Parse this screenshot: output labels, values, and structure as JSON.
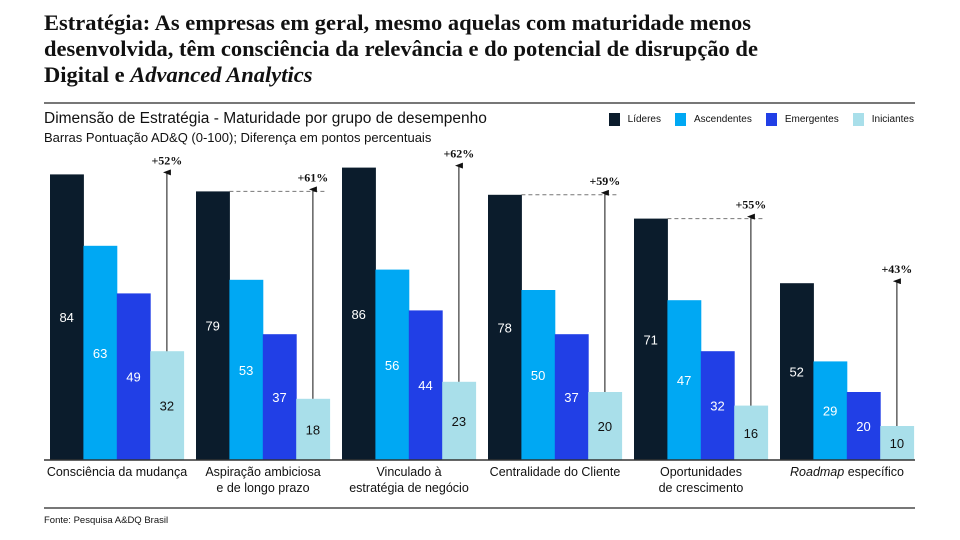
{
  "title": {
    "line1": "Estratégia: As empresas em geral, mesmo aquelas com maturidade menos",
    "line2": "desenvolvida, têm consciência da relevância e do potencial de disrupção de",
    "line3_plain": "Digital e ",
    "line3_italic": "Advanced Analytics"
  },
  "subtitle": "Dimensão de Estratégia - Maturidade por grupo de desempenho",
  "subtitle2": "Barras Pontuação AD&Q (0-100); Diferença em pontos percentuais",
  "source": "Fonte: Pesquisa A&DQ Brasil",
  "chart_data": {
    "type": "bar",
    "ylim": [
      0,
      100
    ],
    "grid": false,
    "legend_position": "top-right",
    "categories": [
      "Consciência da mudança",
      "Aspiração ambiciosa e de longo prazo",
      "Vinculado à estratégia de negócio",
      "Centralidade do Cliente",
      "Oportunidades de crescimento",
      "Roadmap específico"
    ],
    "category_lines": [
      [
        "Consciência da mudança"
      ],
      [
        "Aspiração ambiciosa",
        "e de longo prazo"
      ],
      [
        "Vinculado à",
        "estratégia de negócio"
      ],
      [
        "Centralidade do Cliente"
      ],
      [
        "Oportunidades",
        "de crescimento"
      ],
      [
        "Roadmap",
        " específico"
      ]
    ],
    "series": [
      {
        "name": "Líderes",
        "color": "#0b1c2c",
        "values": [
          84,
          79,
          86,
          78,
          71,
          52
        ]
      },
      {
        "name": "Ascendentes",
        "color": "#00a8f3",
        "values": [
          63,
          53,
          56,
          50,
          47,
          29
        ]
      },
      {
        "name": "Emergentes",
        "color": "#213fe6",
        "values": [
          49,
          37,
          44,
          37,
          32,
          20
        ]
      },
      {
        "name": "Iniciantes",
        "color": "#a9dfea",
        "values": [
          32,
          18,
          23,
          20,
          16,
          10
        ]
      }
    ],
    "differences": [
      "+52%",
      "+61%",
      "+62%",
      "+59%",
      "+55%",
      "+43%"
    ]
  }
}
